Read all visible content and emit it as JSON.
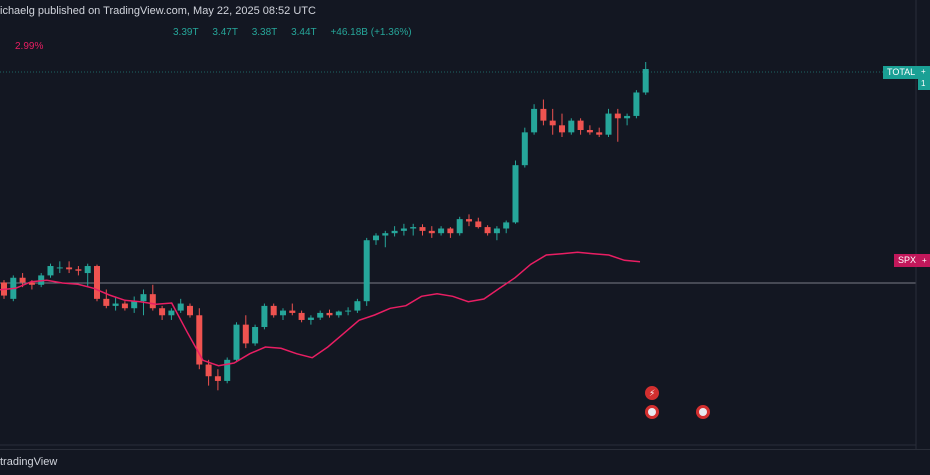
{
  "header": {
    "published_text": "ichaelg published on TradingView.com, May 22, 2025 08:52 UTC"
  },
  "ohlc": {
    "open": "3.39T",
    "high": "3.47T",
    "low": "3.38T",
    "close": "3.44T",
    "change": "+46.18B (+1.36%)"
  },
  "spx_overlay": {
    "change_pct": "2.99%"
  },
  "labels": {
    "total_tag": "TOTAL",
    "total_ext_line1": "+",
    "total_ext_line2": "1",
    "spx_tag": "SPX",
    "spx_ext": "+"
  },
  "footer": {
    "brand": "tradingView"
  },
  "colors": {
    "background": "#131722",
    "up": "#26a69a",
    "down": "#ef5350",
    "spx_line": "#e91e63",
    "grid_line": "#787b86"
  },
  "events": [
    {
      "icon": "lightning-event-icon"
    },
    {
      "icon": "us-flag-event-icon"
    },
    {
      "icon": "us-flag-event-icon"
    }
  ],
  "chart_data": {
    "type": "candlestick",
    "series": [
      {
        "name": "TOTAL",
        "type": "candlestick",
        "ohlc": [
          [
            2.94,
            2.945,
            2.905,
            2.912
          ],
          [
            2.905,
            2.955,
            2.9,
            2.95
          ],
          [
            2.95,
            2.96,
            2.93,
            2.94
          ],
          [
            2.94,
            2.945,
            2.925,
            2.935
          ],
          [
            2.935,
            2.96,
            2.93,
            2.955
          ],
          [
            2.955,
            2.98,
            2.95,
            2.975
          ],
          [
            2.97,
            2.985,
            2.96,
            2.972
          ],
          [
            2.972,
            2.985,
            2.96,
            2.968
          ],
          [
            2.968,
            2.975,
            2.955,
            2.965
          ],
          [
            2.96,
            2.98,
            2.93,
            2.975
          ],
          [
            2.975,
            2.978,
            2.9,
            2.905
          ],
          [
            2.905,
            2.925,
            2.885,
            2.89
          ],
          [
            2.89,
            2.91,
            2.88,
            2.895
          ],
          [
            2.895,
            2.9,
            2.88,
            2.885
          ],
          [
            2.885,
            2.91,
            2.875,
            2.9
          ],
          [
            2.9,
            2.925,
            2.87,
            2.915
          ],
          [
            2.915,
            2.935,
            2.88,
            2.885
          ],
          [
            2.885,
            2.89,
            2.86,
            2.87
          ],
          [
            2.87,
            2.885,
            2.86,
            2.88
          ],
          [
            2.88,
            2.905,
            2.875,
            2.895
          ],
          [
            2.89,
            2.895,
            2.865,
            2.87
          ],
          [
            2.87,
            2.885,
            2.755,
            2.765
          ],
          [
            2.765,
            2.775,
            2.72,
            2.74
          ],
          [
            2.74,
            2.755,
            2.71,
            2.73
          ],
          [
            2.73,
            2.78,
            2.725,
            2.775
          ],
          [
            2.775,
            2.855,
            2.77,
            2.85
          ],
          [
            2.85,
            2.87,
            2.8,
            2.81
          ],
          [
            2.81,
            2.85,
            2.805,
            2.845
          ],
          [
            2.845,
            2.895,
            2.84,
            2.89
          ],
          [
            2.89,
            2.895,
            2.865,
            2.87
          ],
          [
            2.87,
            2.885,
            2.86,
            2.88
          ],
          [
            2.88,
            2.895,
            2.87,
            2.875
          ],
          [
            2.875,
            2.88,
            2.855,
            2.86
          ],
          [
            2.86,
            2.87,
            2.85,
            2.865
          ],
          [
            2.865,
            2.88,
            2.86,
            2.875
          ],
          [
            2.875,
            2.882,
            2.865,
            2.87
          ],
          [
            2.87,
            2.88,
            2.865,
            2.878
          ],
          [
            2.878,
            2.887,
            2.87,
            2.88
          ],
          [
            2.88,
            2.905,
            2.875,
            2.9
          ],
          [
            2.9,
            3.035,
            2.89,
            3.03
          ],
          [
            3.03,
            3.045,
            3.02,
            3.04
          ],
          [
            3.04,
            3.05,
            3.015,
            3.045
          ],
          [
            3.045,
            3.06,
            3.038,
            3.05
          ],
          [
            3.05,
            3.065,
            3.04,
            3.055
          ],
          [
            3.055,
            3.065,
            3.04,
            3.058
          ],
          [
            3.058,
            3.064,
            3.04,
            3.05
          ],
          [
            3.05,
            3.06,
            3.035,
            3.045
          ],
          [
            3.045,
            3.06,
            3.04,
            3.055
          ],
          [
            3.055,
            3.058,
            3.035,
            3.045
          ],
          [
            3.045,
            3.08,
            3.04,
            3.075
          ],
          [
            3.075,
            3.085,
            3.06,
            3.07
          ],
          [
            3.07,
            3.078,
            3.055,
            3.058
          ],
          [
            3.058,
            3.062,
            3.04,
            3.045
          ],
          [
            3.045,
            3.06,
            3.03,
            3.055
          ],
          [
            3.055,
            3.072,
            3.045,
            3.068
          ],
          [
            3.068,
            3.2,
            3.065,
            3.19
          ],
          [
            3.19,
            3.27,
            3.185,
            3.26
          ],
          [
            3.26,
            3.32,
            3.255,
            3.31
          ],
          [
            3.31,
            3.33,
            3.275,
            3.285
          ],
          [
            3.285,
            3.31,
            3.255,
            3.275
          ],
          [
            3.275,
            3.3,
            3.25,
            3.26
          ],
          [
            3.26,
            3.29,
            3.255,
            3.285
          ],
          [
            3.285,
            3.29,
            3.255,
            3.265
          ],
          [
            3.265,
            3.275,
            3.255,
            3.26
          ],
          [
            3.26,
            3.27,
            3.25,
            3.255
          ],
          [
            3.255,
            3.31,
            3.25,
            3.3
          ],
          [
            3.3,
            3.31,
            3.24,
            3.29
          ],
          [
            3.29,
            3.3,
            3.275,
            3.295
          ],
          [
            3.295,
            3.35,
            3.29,
            3.345
          ],
          [
            3.345,
            3.41,
            3.34,
            3.395
          ]
        ]
      },
      {
        "name": "SPX",
        "type": "line",
        "values": [
          2.19,
          2.2,
          2.25,
          2.26,
          2.24,
          2.23,
          2.2,
          2.15,
          2.11,
          2.1,
          2.08,
          2.09,
          1.87,
          1.66,
          1.62,
          1.64,
          1.71,
          1.76,
          1.75,
          1.71,
          1.68,
          1.76,
          1.86,
          1.96,
          2.0,
          2.05,
          2.07,
          2.14,
          2.16,
          2.14,
          2.1,
          2.12,
          2.2,
          2.28,
          2.38,
          2.45,
          2.46,
          2.47,
          2.46,
          2.45,
          2.41,
          2.4
        ]
      }
    ],
    "reference_lines": [
      {
        "name": "TOTAL last price",
        "style": "dotted",
        "color": "#26a69a"
      },
      {
        "name": "SPX baseline",
        "style": "solid",
        "color": "#787b86"
      }
    ],
    "grid": false,
    "legend": "none"
  }
}
